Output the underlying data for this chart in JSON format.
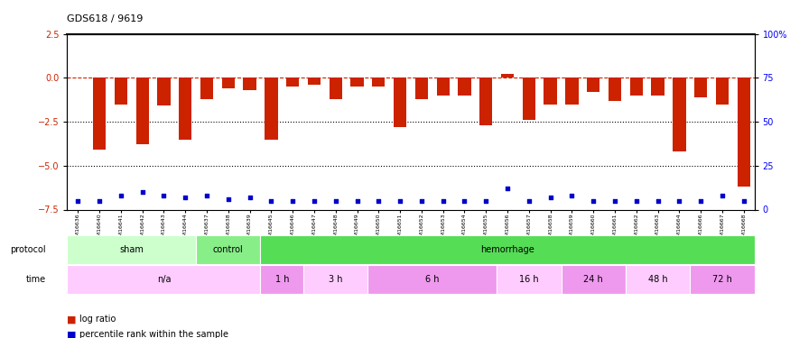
{
  "title": "GDS618 / 9619",
  "samples": [
    "GSM16636",
    "GSM16640",
    "GSM16641",
    "GSM16642",
    "GSM16643",
    "GSM16644",
    "GSM16637",
    "GSM16638",
    "GSM16639",
    "GSM16645",
    "GSM16646",
    "GSM16647",
    "GSM16648",
    "GSM16649",
    "GSM16650",
    "GSM16651",
    "GSM16652",
    "GSM16653",
    "GSM16654",
    "GSM16655",
    "GSM16656",
    "GSM16657",
    "GSM16658",
    "GSM16659",
    "GSM16660",
    "GSM16661",
    "GSM16662",
    "GSM16663",
    "GSM16664",
    "GSM16666",
    "GSM16667",
    "GSM16668"
  ],
  "log_ratio": [
    0.0,
    -4.1,
    -1.5,
    -3.8,
    -1.6,
    -3.5,
    -1.2,
    -0.6,
    -0.7,
    -3.5,
    -0.5,
    -0.4,
    -1.2,
    -0.5,
    -0.5,
    -2.8,
    -1.2,
    -1.0,
    -1.0,
    -2.7,
    0.2,
    -2.4,
    -1.5,
    -1.5,
    -0.8,
    -1.3,
    -1.0,
    -1.0,
    -4.2,
    -1.1,
    -1.5,
    -6.2
  ],
  "percentile": [
    5,
    5,
    8,
    10,
    8,
    7,
    8,
    6,
    7,
    5,
    5,
    5,
    5,
    5,
    5,
    5,
    5,
    5,
    5,
    5,
    12,
    5,
    7,
    8,
    5,
    5,
    5,
    5,
    5,
    5,
    8,
    5
  ],
  "protocol_groups": [
    {
      "label": "sham",
      "start": 0,
      "end": 5,
      "color": "#ccffcc"
    },
    {
      "label": "control",
      "start": 6,
      "end": 8,
      "color": "#88ee88"
    },
    {
      "label": "hemorrhage",
      "start": 9,
      "end": 31,
      "color": "#55dd55"
    }
  ],
  "time_groups": [
    {
      "label": "n/a",
      "start": 0,
      "end": 8,
      "color": "#ffccff"
    },
    {
      "label": "1 h",
      "start": 9,
      "end": 10,
      "color": "#ee99ee"
    },
    {
      "label": "3 h",
      "start": 11,
      "end": 13,
      "color": "#ffccff"
    },
    {
      "label": "6 h",
      "start": 14,
      "end": 19,
      "color": "#ee99ee"
    },
    {
      "label": "16 h",
      "start": 20,
      "end": 22,
      "color": "#ffccff"
    },
    {
      "label": "24 h",
      "start": 23,
      "end": 25,
      "color": "#ee99ee"
    },
    {
      "label": "48 h",
      "start": 26,
      "end": 28,
      "color": "#ffccff"
    },
    {
      "label": "72 h",
      "start": 29,
      "end": 31,
      "color": "#ee99ee"
    }
  ],
  "ylim_left": [
    -7.5,
    2.5
  ],
  "ylim_right": [
    0,
    100
  ],
  "yticks_left": [
    -7.5,
    -5.0,
    -2.5,
    0.0,
    2.5
  ],
  "yticks_right": [
    0,
    25,
    50,
    75,
    100
  ],
  "ytick_labels_right": [
    "0",
    "25",
    "50",
    "75",
    "100%"
  ],
  "bar_color": "#cc2200",
  "dot_color": "#0000cc",
  "hline_color": "#cc2200",
  "dotline_color": "#000000",
  "bg_color": "#ffffff"
}
